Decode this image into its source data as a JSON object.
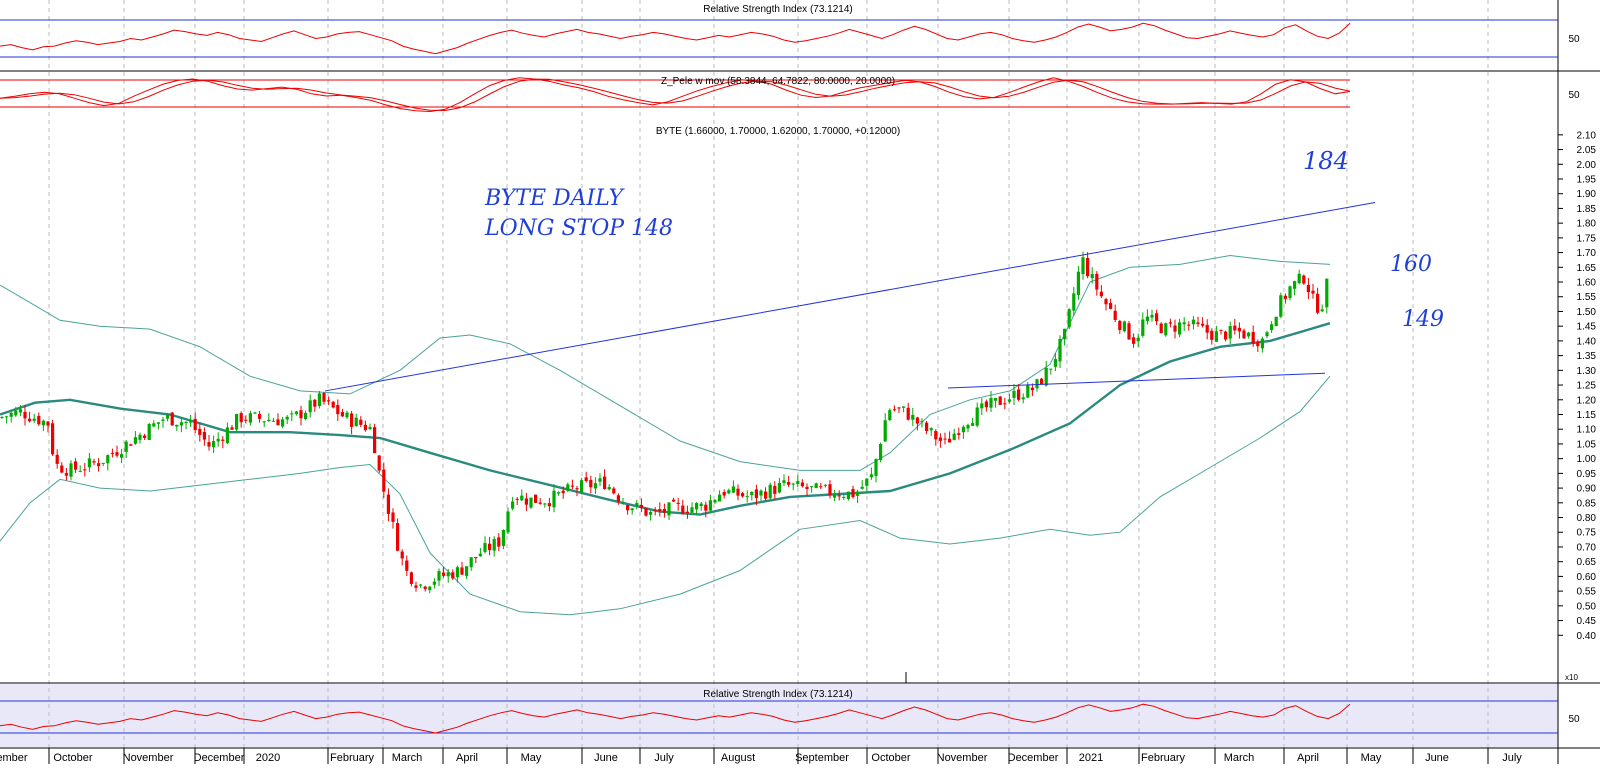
{
  "chart_data": {
    "type": "candlestick",
    "ticker": "BYTE",
    "title": "BYTE (1.66000, 1.70000, 1.62000, 1.70000, +0.12000)",
    "colors": {
      "up": "#00aa00",
      "down": "#ee0000",
      "band": "#4aa39b",
      "ma": "#2b8a80",
      "trendline": "#2233dd",
      "rsi": "#ee0000",
      "rsi_bottom_bg": "#e8e8f8",
      "annotation": "#1f3fd6"
    },
    "y_ticks": [
      "0.40",
      "0.45",
      "0.50",
      "0.55",
      "0.60",
      "0.65",
      "0.70",
      "0.75",
      "0.80",
      "0.85",
      "0.90",
      "0.95",
      "1.00",
      "1.05",
      "1.10",
      "1.15",
      "1.20",
      "1.25",
      "1.30",
      "1.35",
      "1.40",
      "1.45",
      "1.50",
      "1.55",
      "1.60",
      "1.65",
      "1.70",
      "1.75",
      "1.80",
      "1.85",
      "1.90",
      "1.95",
      "2.00",
      "2.05",
      "2.10"
    ],
    "y_range": [
      0.35,
      2.13
    ],
    "x_labels": [
      "ember",
      "October",
      "November",
      "December",
      "2020",
      "February",
      "March",
      "April",
      "May",
      "June",
      "July",
      "August",
      "September",
      "October",
      "November",
      "December",
      "2021",
      "February",
      "March",
      "April",
      "May",
      "June",
      "July"
    ],
    "price_path": [
      {
        "x": 0,
        "y": 1.14
      },
      {
        "x": 20,
        "y": 1.16
      },
      {
        "x": 48,
        "y": 1.12
      },
      {
        "x": 55,
        "y": 0.98
      },
      {
        "x": 70,
        "y": 0.96
      },
      {
        "x": 100,
        "y": 0.99
      },
      {
        "x": 135,
        "y": 1.07
      },
      {
        "x": 165,
        "y": 1.14
      },
      {
        "x": 190,
        "y": 1.12
      },
      {
        "x": 210,
        "y": 1.04
      },
      {
        "x": 240,
        "y": 1.14
      },
      {
        "x": 290,
        "y": 1.13
      },
      {
        "x": 320,
        "y": 1.2
      },
      {
        "x": 345,
        "y": 1.14
      },
      {
        "x": 372,
        "y": 1.1
      },
      {
        "x": 378,
        "y": 0.97
      },
      {
        "x": 392,
        "y": 0.78
      },
      {
        "x": 405,
        "y": 0.62
      },
      {
        "x": 420,
        "y": 0.57
      },
      {
        "x": 440,
        "y": 0.6
      },
      {
        "x": 460,
        "y": 0.62
      },
      {
        "x": 480,
        "y": 0.68
      },
      {
        "x": 500,
        "y": 0.72
      },
      {
        "x": 512,
        "y": 0.88
      },
      {
        "x": 528,
        "y": 0.86
      },
      {
        "x": 548,
        "y": 0.86
      },
      {
        "x": 575,
        "y": 0.9
      },
      {
        "x": 605,
        "y": 0.92
      },
      {
        "x": 625,
        "y": 0.85
      },
      {
        "x": 652,
        "y": 0.81
      },
      {
        "x": 672,
        "y": 0.83
      },
      {
        "x": 705,
        "y": 0.84
      },
      {
        "x": 722,
        "y": 0.89
      },
      {
        "x": 750,
        "y": 0.87
      },
      {
        "x": 785,
        "y": 0.91
      },
      {
        "x": 820,
        "y": 0.89
      },
      {
        "x": 855,
        "y": 0.88
      },
      {
        "x": 872,
        "y": 0.94
      },
      {
        "x": 888,
        "y": 1.17
      },
      {
        "x": 905,
        "y": 1.16
      },
      {
        "x": 925,
        "y": 1.1
      },
      {
        "x": 945,
        "y": 1.05
      },
      {
        "x": 965,
        "y": 1.13
      },
      {
        "x": 990,
        "y": 1.18
      },
      {
        "x": 1010,
        "y": 1.21
      },
      {
        "x": 1035,
        "y": 1.24
      },
      {
        "x": 1050,
        "y": 1.31
      },
      {
        "x": 1065,
        "y": 1.42
      },
      {
        "x": 1075,
        "y": 1.58
      },
      {
        "x": 1082,
        "y": 1.68
      },
      {
        "x": 1090,
        "y": 1.62
      },
      {
        "x": 1105,
        "y": 1.53
      },
      {
        "x": 1120,
        "y": 1.46
      },
      {
        "x": 1135,
        "y": 1.4
      },
      {
        "x": 1145,
        "y": 1.48
      },
      {
        "x": 1165,
        "y": 1.44
      },
      {
        "x": 1185,
        "y": 1.46
      },
      {
        "x": 1215,
        "y": 1.42
      },
      {
        "x": 1240,
        "y": 1.43
      },
      {
        "x": 1262,
        "y": 1.4
      },
      {
        "x": 1275,
        "y": 1.5
      },
      {
        "x": 1290,
        "y": 1.58
      },
      {
        "x": 1305,
        "y": 1.62
      },
      {
        "x": 1312,
        "y": 1.54
      },
      {
        "x": 1320,
        "y": 1.51
      },
      {
        "x": 1326,
        "y": 1.56
      },
      {
        "x": 1330,
        "y": 1.7
      }
    ],
    "bollinger_upper": [
      {
        "x": 0,
        "y": 1.59
      },
      {
        "x": 30,
        "y": 1.53
      },
      {
        "x": 60,
        "y": 1.47
      },
      {
        "x": 100,
        "y": 1.45
      },
      {
        "x": 150,
        "y": 1.44
      },
      {
        "x": 200,
        "y": 1.38
      },
      {
        "x": 250,
        "y": 1.28
      },
      {
        "x": 300,
        "y": 1.23
      },
      {
        "x": 350,
        "y": 1.22
      },
      {
        "x": 400,
        "y": 1.3
      },
      {
        "x": 440,
        "y": 1.41
      },
      {
        "x": 470,
        "y": 1.42
      },
      {
        "x": 510,
        "y": 1.39
      },
      {
        "x": 560,
        "y": 1.3
      },
      {
        "x": 620,
        "y": 1.18
      },
      {
        "x": 680,
        "y": 1.06
      },
      {
        "x": 740,
        "y": 0.99
      },
      {
        "x": 800,
        "y": 0.96
      },
      {
        "x": 860,
        "y": 0.96
      },
      {
        "x": 890,
        "y": 1.02
      },
      {
        "x": 930,
        "y": 1.15
      },
      {
        "x": 970,
        "y": 1.2
      },
      {
        "x": 1010,
        "y": 1.23
      },
      {
        "x": 1050,
        "y": 1.32
      },
      {
        "x": 1090,
        "y": 1.6
      },
      {
        "x": 1130,
        "y": 1.65
      },
      {
        "x": 1180,
        "y": 1.66
      },
      {
        "x": 1230,
        "y": 1.69
      },
      {
        "x": 1280,
        "y": 1.67
      },
      {
        "x": 1330,
        "y": 1.66
      }
    ],
    "bollinger_lower": [
      {
        "x": 0,
        "y": 0.72
      },
      {
        "x": 30,
        "y": 0.85
      },
      {
        "x": 60,
        "y": 0.93
      },
      {
        "x": 100,
        "y": 0.9
      },
      {
        "x": 150,
        "y": 0.89
      },
      {
        "x": 200,
        "y": 0.91
      },
      {
        "x": 250,
        "y": 0.93
      },
      {
        "x": 300,
        "y": 0.95
      },
      {
        "x": 340,
        "y": 0.97
      },
      {
        "x": 370,
        "y": 0.98
      },
      {
        "x": 400,
        "y": 0.88
      },
      {
        "x": 430,
        "y": 0.68
      },
      {
        "x": 470,
        "y": 0.54
      },
      {
        "x": 520,
        "y": 0.48
      },
      {
        "x": 570,
        "y": 0.47
      },
      {
        "x": 620,
        "y": 0.49
      },
      {
        "x": 680,
        "y": 0.54
      },
      {
        "x": 740,
        "y": 0.62
      },
      {
        "x": 800,
        "y": 0.76
      },
      {
        "x": 860,
        "y": 0.79
      },
      {
        "x": 900,
        "y": 0.73
      },
      {
        "x": 950,
        "y": 0.71
      },
      {
        "x": 1000,
        "y": 0.73
      },
      {
        "x": 1050,
        "y": 0.76
      },
      {
        "x": 1090,
        "y": 0.74
      },
      {
        "x": 1120,
        "y": 0.75
      },
      {
        "x": 1160,
        "y": 0.87
      },
      {
        "x": 1210,
        "y": 0.97
      },
      {
        "x": 1260,
        "y": 1.07
      },
      {
        "x": 1300,
        "y": 1.16
      },
      {
        "x": 1330,
        "y": 1.28
      }
    ],
    "moving_average": [
      {
        "x": 0,
        "y": 1.15
      },
      {
        "x": 35,
        "y": 1.19
      },
      {
        "x": 70,
        "y": 1.2
      },
      {
        "x": 120,
        "y": 1.17
      },
      {
        "x": 170,
        "y": 1.15
      },
      {
        "x": 230,
        "y": 1.09
      },
      {
        "x": 290,
        "y": 1.09
      },
      {
        "x": 340,
        "y": 1.08
      },
      {
        "x": 380,
        "y": 1.07
      },
      {
        "x": 430,
        "y": 1.02
      },
      {
        "x": 490,
        "y": 0.96
      },
      {
        "x": 550,
        "y": 0.91
      },
      {
        "x": 610,
        "y": 0.86
      },
      {
        "x": 660,
        "y": 0.82
      },
      {
        "x": 700,
        "y": 0.81
      },
      {
        "x": 740,
        "y": 0.84
      },
      {
        "x": 790,
        "y": 0.87
      },
      {
        "x": 840,
        "y": 0.88
      },
      {
        "x": 890,
        "y": 0.89
      },
      {
        "x": 950,
        "y": 0.95
      },
      {
        "x": 1010,
        "y": 1.03
      },
      {
        "x": 1070,
        "y": 1.12
      },
      {
        "x": 1120,
        "y": 1.25
      },
      {
        "x": 1170,
        "y": 1.33
      },
      {
        "x": 1220,
        "y": 1.38
      },
      {
        "x": 1270,
        "y": 1.4
      },
      {
        "x": 1300,
        "y": 1.43
      },
      {
        "x": 1330,
        "y": 1.46
      }
    ],
    "trendlines": [
      {
        "x1": 325,
        "y1": 1.23,
        "x2": 1375,
        "y2": 1.87
      },
      {
        "x1": 948,
        "y1": 1.24,
        "x2": 1325,
        "y2": 1.29
      }
    ],
    "annotations": {
      "label_main": "BYTE DAILY",
      "label_stop": "LONG STOP 148",
      "target_184": "184",
      "level_160": "160",
      "level_149": "149"
    },
    "rsi_top": {
      "title": "Relative Strength Index (73.1214)",
      "tick": "50",
      "path": [
        42,
        44,
        40,
        37,
        41,
        42,
        46,
        49,
        47,
        44,
        46,
        48,
        52,
        50,
        54,
        58,
        63,
        61,
        58,
        56,
        60,
        57,
        52,
        50,
        48,
        53,
        58,
        62,
        57,
        52,
        54,
        58,
        60,
        61,
        57,
        53,
        49,
        42,
        38,
        35,
        32,
        36,
        40,
        46,
        51,
        56,
        60,
        63,
        59,
        56,
        54,
        58,
        61,
        64,
        60,
        58,
        55,
        52,
        55,
        57,
        60,
        58,
        55,
        52,
        50,
        53,
        56,
        54,
        57,
        60,
        58,
        55,
        50,
        47,
        49,
        52,
        55,
        59,
        64,
        60,
        56,
        52,
        57,
        63,
        68,
        64,
        58,
        52,
        50,
        54,
        58,
        60,
        57,
        52,
        49,
        47,
        50,
        54,
        60,
        67,
        71,
        67,
        62,
        64,
        67,
        72,
        69,
        63,
        58,
        53,
        52,
        55,
        58,
        62,
        59,
        56,
        54,
        57,
        66,
        70,
        62,
        55,
        52,
        59,
        72
      ]
    },
    "zpele": {
      "title": "Z_Pele w mov (58.3844, 64.7822, 80.0000, 20.0000)",
      "tick": "50",
      "path": [
        40,
        45,
        52,
        56,
        52,
        40,
        28,
        20,
        26,
        45,
        62,
        78,
        88,
        92,
        86,
        74,
        65,
        62,
        66,
        70,
        64,
        52,
        46,
        48,
        42,
        34,
        22,
        12,
        6,
        4,
        10,
        28,
        52,
        74,
        88,
        95,
        92,
        86,
        76,
        68,
        58,
        45,
        36,
        28,
        22,
        30,
        45,
        60,
        72,
        82,
        90,
        86,
        78,
        62,
        48,
        42,
        46,
        58,
        68,
        75,
        82,
        88,
        84,
        72,
        56,
        44,
        38,
        42,
        55,
        70,
        84,
        95,
        86,
        72,
        55,
        40,
        30,
        25,
        24,
        24,
        26,
        28,
        26,
        24,
        30,
        52,
        78,
        90,
        84,
        66,
        52,
        58
      ]
    },
    "rsi_bottom": {
      "title": "Relative Strength Index (73.1214)",
      "tick": "50",
      "scale_tag": "x10"
    }
  }
}
